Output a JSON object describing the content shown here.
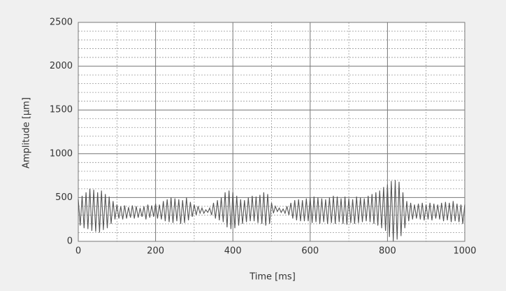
{
  "chart_data": {
    "type": "line",
    "xlabel": "Time [ms]",
    "ylabel": "Amplitude [µm]",
    "xlim": [
      0,
      1000
    ],
    "ylim": [
      0,
      2500
    ],
    "xticks": [
      0,
      200,
      400,
      600,
      800,
      1000
    ],
    "yticks": [
      0,
      500,
      1000,
      1500,
      2000,
      2500
    ],
    "xminorticks": [
      100,
      300,
      500,
      700,
      900
    ],
    "yminorticks": [
      100,
      200,
      300,
      400,
      600,
      700,
      800,
      900,
      1100,
      1200,
      1300,
      1400,
      1600,
      1700,
      1800,
      1900,
      2100,
      2200,
      2300,
      2400
    ],
    "grid": true,
    "series": [
      {
        "color": "#555555",
        "x": [
          0,
          5,
          10,
          15,
          20,
          25,
          30,
          35,
          40,
          45,
          50,
          55,
          60,
          65,
          70,
          75,
          80,
          85,
          90,
          95,
          100,
          105,
          110,
          115,
          120,
          125,
          130,
          135,
          140,
          145,
          150,
          155,
          160,
          165,
          170,
          175,
          180,
          185,
          190,
          195,
          200,
          205,
          210,
          215,
          220,
          225,
          230,
          235,
          240,
          245,
          250,
          255,
          260,
          265,
          270,
          275,
          280,
          285,
          290,
          295,
          300,
          305,
          310,
          315,
          320,
          325,
          330,
          335,
          340,
          345,
          350,
          355,
          360,
          365,
          370,
          375,
          380,
          385,
          390,
          395,
          400,
          405,
          410,
          415,
          420,
          425,
          430,
          435,
          440,
          445,
          450,
          455,
          460,
          465,
          470,
          475,
          480,
          485,
          490,
          495,
          500,
          505,
          510,
          515,
          520,
          525,
          530,
          535,
          540,
          545,
          550,
          555,
          560,
          565,
          570,
          575,
          580,
          585,
          590,
          595,
          600,
          605,
          610,
          615,
          620,
          625,
          630,
          635,
          640,
          645,
          650,
          655,
          660,
          665,
          670,
          675,
          680,
          685,
          690,
          695,
          700,
          705,
          710,
          715,
          720,
          725,
          730,
          735,
          740,
          745,
          750,
          755,
          760,
          765,
          770,
          775,
          780,
          785,
          790,
          795,
          800,
          805,
          810,
          815,
          820,
          825,
          830,
          835,
          840,
          845,
          850,
          855,
          860,
          865,
          870,
          875,
          880,
          885,
          890,
          895,
          900,
          905,
          910,
          915,
          920,
          925,
          930,
          935,
          940,
          945,
          950,
          955,
          960,
          965,
          970,
          975,
          980,
          985,
          990,
          995,
          1000
        ],
        "values": [
          480,
          180,
          520,
          150,
          560,
          140,
          600,
          120,
          590,
          110,
          560,
          100,
          580,
          130,
          540,
          150,
          510,
          200,
          460,
          250,
          420,
          260,
          400,
          250,
          410,
          260,
          390,
          270,
          410,
          260,
          400,
          270,
          380,
          280,
          400,
          250,
          420,
          270,
          410,
          280,
          430,
          260,
          420,
          250,
          460,
          230,
          480,
          220,
          500,
          210,
          490,
          230,
          480,
          200,
          470,
          210,
          500,
          240,
          450,
          280,
          420,
          300,
          400,
          320,
          380,
          320,
          360,
          330,
          380,
          300,
          440,
          260,
          470,
          240,
          500,
          220,
          560,
          160,
          580,
          140,
          560,
          150,
          520,
          180,
          480,
          200,
          470,
          220,
          500,
          230,
          520,
          230,
          510,
          210,
          530,
          200,
          560,
          180,
          540,
          200,
          440,
          320,
          400,
          340,
          380,
          330,
          370,
          320,
          400,
          300,
          440,
          260,
          470,
          240,
          480,
          230,
          470,
          230,
          490,
          230,
          500,
          210,
          510,
          220,
          500,
          200,
          490,
          220,
          480,
          200,
          500,
          210,
          520,
          200,
          510,
          220,
          490,
          200,
          510,
          190,
          490,
          210,
          480,
          200,
          510,
          210,
          500,
          220,
          490,
          230,
          520,
          220,
          540,
          200,
          560,
          180,
          580,
          150,
          620,
          120,
          650,
          50,
          690,
          0,
          700,
          20,
          680,
          60,
          560,
          150,
          460,
          230,
          440,
          250,
          420,
          260,
          430,
          250,
          440,
          240,
          420,
          250,
          440,
          240,
          430,
          260,
          420,
          250,
          440,
          230,
          450,
          240,
          440,
          220,
          460,
          230,
          430,
          220,
          420,
          200,
          420
        ]
      }
    ]
  }
}
